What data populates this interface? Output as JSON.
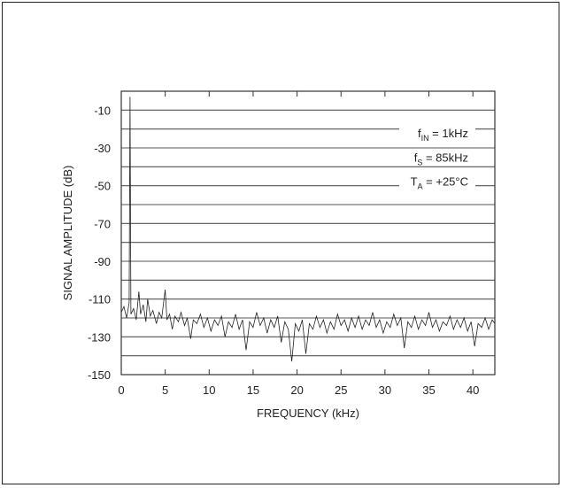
{
  "chart_data": {
    "type": "line",
    "title": "",
    "xlabel": "FREQUENCY (kHz)",
    "ylabel": "SIGNAL AMPLITUDE (dB)",
    "xlim": [
      0,
      42.5
    ],
    "ylim": [
      -150,
      0
    ],
    "xticks": [
      0,
      5,
      10,
      15,
      20,
      25,
      30,
      35,
      40
    ],
    "yticks": [
      -10,
      -30,
      -50,
      -70,
      -90,
      -110,
      -130,
      -150
    ],
    "grid": "horizontal",
    "annotations": [
      {
        "main": "f",
        "sub": "IN",
        "rest": " = 1kHz"
      },
      {
        "main": "f",
        "sub": "S",
        "rest": " = 85kHz"
      },
      {
        "main": "T",
        "sub": "A",
        "rest": " = +25°C"
      }
    ],
    "series": [
      {
        "points": [
          [
            0.0,
            -117
          ],
          [
            0.3,
            -114
          ],
          [
            0.6,
            -120
          ],
          [
            0.9,
            -112
          ],
          [
            1.0,
            -3
          ],
          [
            1.1,
            -118
          ],
          [
            1.4,
            -115
          ],
          [
            1.7,
            -121
          ],
          [
            2.0,
            -106
          ],
          [
            2.2,
            -118
          ],
          [
            2.5,
            -113
          ],
          [
            2.8,
            -122
          ],
          [
            3.0,
            -110
          ],
          [
            3.3,
            -119
          ],
          [
            3.6,
            -116
          ],
          [
            4.0,
            -123
          ],
          [
            4.3,
            -117
          ],
          [
            4.6,
            -120
          ],
          [
            5.0,
            -105
          ],
          [
            5.2,
            -121
          ],
          [
            5.5,
            -118
          ],
          [
            5.8,
            -126
          ],
          [
            6.1,
            -119
          ],
          [
            6.5,
            -122
          ],
          [
            6.8,
            -117
          ],
          [
            7.2,
            -124
          ],
          [
            7.5,
            -120
          ],
          [
            7.9,
            -131
          ],
          [
            8.2,
            -121
          ],
          [
            8.6,
            -123
          ],
          [
            9.0,
            -118
          ],
          [
            9.4,
            -125
          ],
          [
            9.8,
            -120
          ],
          [
            10.2,
            -127
          ],
          [
            10.6,
            -121
          ],
          [
            11.0,
            -124
          ],
          [
            11.4,
            -119
          ],
          [
            11.8,
            -130
          ],
          [
            12.2,
            -122
          ],
          [
            12.6,
            -125
          ],
          [
            13.0,
            -118
          ],
          [
            13.4,
            -126
          ],
          [
            13.8,
            -121
          ],
          [
            14.2,
            -137
          ],
          [
            14.6,
            -122
          ],
          [
            15.0,
            -125
          ],
          [
            15.4,
            -117
          ],
          [
            15.8,
            -124
          ],
          [
            16.2,
            -120
          ],
          [
            16.6,
            -128
          ],
          [
            17.0,
            -121
          ],
          [
            17.4,
            -125
          ],
          [
            17.8,
            -119
          ],
          [
            18.2,
            -133
          ],
          [
            18.6,
            -122
          ],
          [
            19.0,
            -126
          ],
          [
            19.4,
            -143
          ],
          [
            19.8,
            -123
          ],
          [
            20.2,
            -127
          ],
          [
            20.6,
            -121
          ],
          [
            21.0,
            -139
          ],
          [
            21.4,
            -123
          ],
          [
            21.8,
            -126
          ],
          [
            22.2,
            -119
          ],
          [
            22.6,
            -125
          ],
          [
            23.0,
            -121
          ],
          [
            23.4,
            -128
          ],
          [
            23.8,
            -122
          ],
          [
            24.2,
            -126
          ],
          [
            24.6,
            -118
          ],
          [
            25.0,
            -124
          ],
          [
            25.4,
            -121
          ],
          [
            25.8,
            -127
          ],
          [
            26.2,
            -120
          ],
          [
            26.6,
            -125
          ],
          [
            27.0,
            -119
          ],
          [
            27.4,
            -126
          ],
          [
            27.8,
            -121
          ],
          [
            28.2,
            -124
          ],
          [
            28.6,
            -117
          ],
          [
            29.0,
            -125
          ],
          [
            29.4,
            -121
          ],
          [
            29.8,
            -128
          ],
          [
            30.2,
            -122
          ],
          [
            30.6,
            -125
          ],
          [
            31.0,
            -118
          ],
          [
            31.4,
            -124
          ],
          [
            31.8,
            -120
          ],
          [
            32.2,
            -136
          ],
          [
            32.6,
            -122
          ],
          [
            33.0,
            -125
          ],
          [
            33.4,
            -119
          ],
          [
            33.8,
            -126
          ],
          [
            34.2,
            -121
          ],
          [
            34.6,
            -124
          ],
          [
            35.0,
            -117
          ],
          [
            35.4,
            -125
          ],
          [
            35.8,
            -121
          ],
          [
            36.2,
            -127
          ],
          [
            36.6,
            -122
          ],
          [
            37.0,
            -124
          ],
          [
            37.4,
            -119
          ],
          [
            37.8,
            -126
          ],
          [
            38.2,
            -121
          ],
          [
            38.6,
            -125
          ],
          [
            39.0,
            -120
          ],
          [
            39.4,
            -127
          ],
          [
            39.8,
            -122
          ],
          [
            40.2,
            -135
          ],
          [
            40.6,
            -123
          ],
          [
            41.0,
            -125
          ],
          [
            41.4,
            -120
          ],
          [
            41.8,
            -126
          ],
          [
            42.2,
            -121
          ],
          [
            42.5,
            -123
          ]
        ]
      }
    ]
  }
}
